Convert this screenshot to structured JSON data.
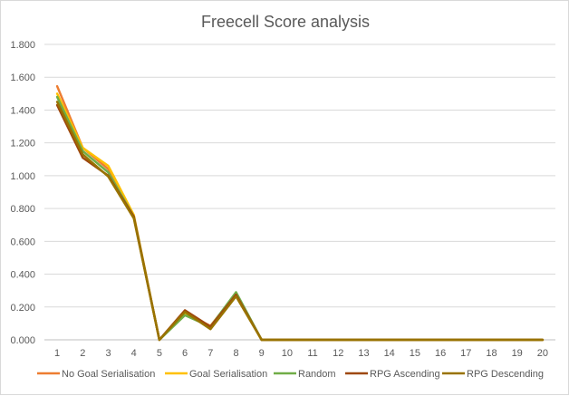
{
  "chart_data": {
    "type": "line",
    "title": "Freecell Score analysis",
    "xlabel": "",
    "ylabel": "",
    "categories": [
      "1",
      "2",
      "3",
      "4",
      "5",
      "6",
      "7",
      "8",
      "9",
      "10",
      "11",
      "12",
      "13",
      "14",
      "15",
      "16",
      "17",
      "18",
      "19",
      "20"
    ],
    "ylim": [
      0,
      1.8
    ],
    "yticks": [
      "0.000",
      "0.200",
      "0.400",
      "0.600",
      "0.800",
      "1.000",
      "1.200",
      "1.400",
      "1.600",
      "1.800"
    ],
    "grid": true,
    "legend_position": "bottom",
    "series": [
      {
        "name": "No Goal Serialisation",
        "color": "#ed7d31",
        "values": [
          1.545,
          1.17,
          1.04,
          0.75,
          0.0,
          0.16,
          0.085,
          0.28,
          0.0,
          0,
          0,
          0,
          0,
          0,
          0,
          0,
          0,
          0,
          0,
          0
        ]
      },
      {
        "name": "Goal Serialisation",
        "color": "#ffc000",
        "values": [
          1.5,
          1.17,
          1.06,
          0.76,
          0.0,
          0.16,
          0.08,
          0.285,
          0.0,
          0,
          0,
          0,
          0,
          0,
          0,
          0,
          0,
          0,
          0,
          0
        ]
      },
      {
        "name": "Random",
        "color": "#70ad47",
        "values": [
          1.48,
          1.15,
          1.02,
          0.75,
          0.0,
          0.15,
          0.08,
          0.29,
          0.0,
          0,
          0,
          0,
          0,
          0,
          0,
          0,
          0,
          0,
          0,
          0
        ]
      },
      {
        "name": "RPG Ascending",
        "color": "#9e480e",
        "values": [
          1.43,
          1.11,
          1.0,
          0.75,
          0.0,
          0.18,
          0.08,
          0.275,
          0.0,
          0,
          0,
          0,
          0,
          0,
          0,
          0,
          0,
          0,
          0,
          0
        ]
      },
      {
        "name": "RPG Descending",
        "color": "#997300",
        "values": [
          1.45,
          1.13,
          0.995,
          0.74,
          0.0,
          0.17,
          0.065,
          0.265,
          0.0,
          0,
          0,
          0,
          0,
          0,
          0,
          0,
          0,
          0,
          0,
          0
        ]
      }
    ]
  }
}
